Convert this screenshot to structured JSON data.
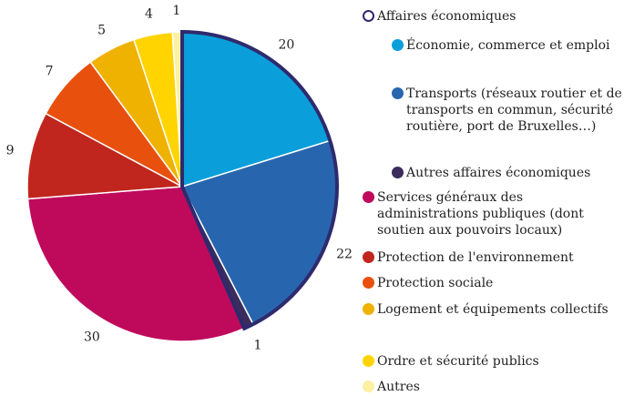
{
  "chart_data": {
    "type": "pie",
    "categories": [
      "Économie, commerce et emploi",
      "Transports (réseaux routier et de transports en commun, sécurité routière, port de Bruxelles…)",
      "Autres affaires économiques",
      "Services généraux des administrations publiques (dont soutien aux pouvoirs locaux)",
      "Protection de l'environnement",
      "Protection sociale",
      "Logement et équipements collectifs",
      "Ordre et sécurité publics",
      "Autres"
    ],
    "values": [
      20,
      22,
      1,
      30,
      9,
      7,
      5,
      4,
      1
    ],
    "colors": [
      "#0a9fdb",
      "#2766ae",
      "#3b2c5c",
      "#bf0a5c",
      "#c0261d",
      "#e8500e",
      "#efb200",
      "#ffd400",
      "#fdf0a2"
    ],
    "group": {
      "label": "Affaires économiques",
      "count": 3,
      "color": "#2e2a6e"
    }
  }
}
